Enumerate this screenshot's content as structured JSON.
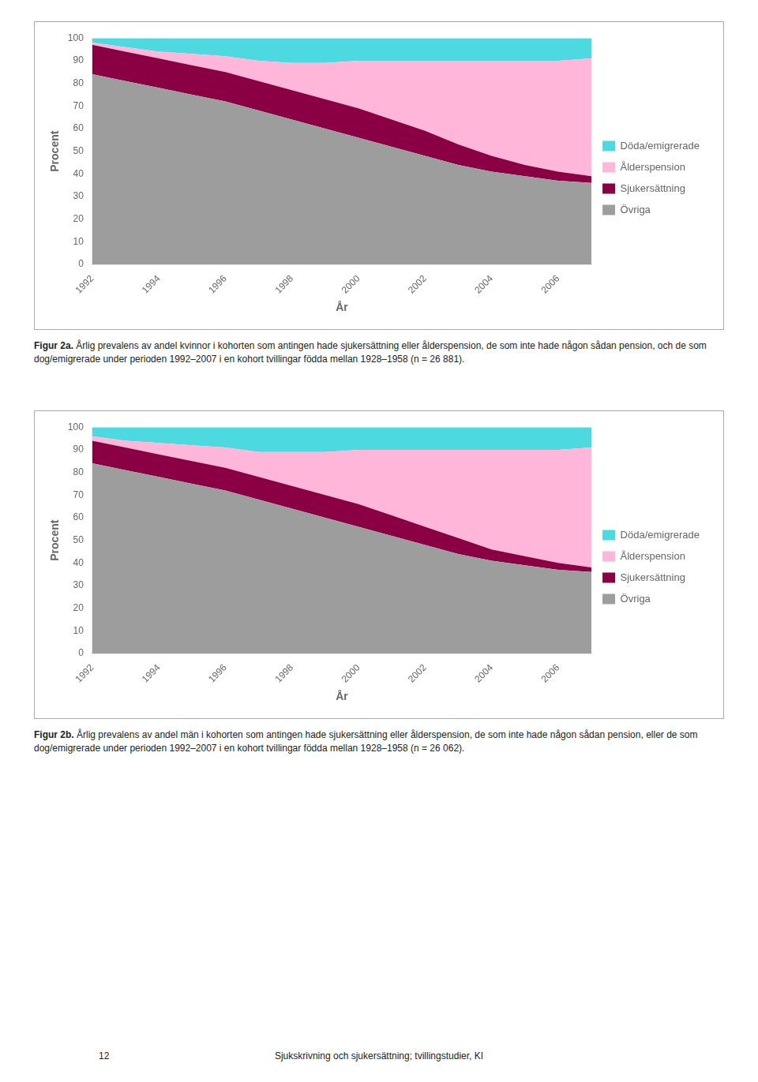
{
  "chart_data": [
    {
      "type": "area",
      "stacked": true,
      "grid": false,
      "legend": "right",
      "x_label": "År",
      "y_label": "Procent",
      "x": [
        1992,
        1993,
        1994,
        1995,
        1996,
        1997,
        1998,
        1999,
        2000,
        2001,
        2002,
        2003,
        2004,
        2005,
        2006,
        2007
      ],
      "xlim": [
        1992,
        2007
      ],
      "xticks": [
        1992,
        1994,
        1996,
        1998,
        2000,
        2002,
        2004,
        2006
      ],
      "ylim": [
        0,
        100
      ],
      "yticks": [
        0,
        10,
        20,
        30,
        40,
        50,
        60,
        70,
        80,
        90,
        100
      ],
      "series": [
        {
          "name": "Övriga",
          "color": "#9d9d9d",
          "values": [
            84,
            81,
            78,
            75,
            72,
            68,
            64,
            60,
            56,
            52,
            48,
            44,
            41,
            39,
            37,
            36
          ]
        },
        {
          "name": "Sjukersättning",
          "color": "#8b0045",
          "values": [
            13,
            13,
            13,
            13,
            13,
            13,
            13,
            13,
            13,
            12,
            11,
            9,
            7,
            5,
            4,
            3
          ]
        },
        {
          "name": "Ålderspension",
          "color": "#ffb6d9",
          "values": [
            1,
            2,
            3,
            5,
            7,
            9,
            12,
            16,
            21,
            26,
            31,
            37,
            42,
            46,
            49,
            52
          ]
        },
        {
          "name": "Döda/emigrerade",
          "color": "#4dd9e0",
          "values": [
            2,
            4,
            6,
            7,
            8,
            10,
            11,
            11,
            10,
            10,
            10,
            10,
            10,
            10,
            10,
            9
          ]
        }
      ],
      "caption": {
        "bold": "Figur 2a.",
        "text": " Årlig prevalens av andel kvinnor i kohorten som antingen hade sjukersättning eller ålderspension, de som inte hade någon sådan pension, och de som dog/emigrerade under perioden 1992–2007 i en kohort tvillingar födda mellan 1928–1958 (n = 26 881)."
      }
    },
    {
      "type": "area",
      "stacked": true,
      "grid": false,
      "legend": "right",
      "x_label": "År",
      "y_label": "Procent",
      "x": [
        1992,
        1993,
        1994,
        1995,
        1996,
        1997,
        1998,
        1999,
        2000,
        2001,
        2002,
        2003,
        2004,
        2005,
        2006,
        2007
      ],
      "xlim": [
        1992,
        2007
      ],
      "xticks": [
        1992,
        1994,
        1996,
        1998,
        2000,
        2002,
        2004,
        2006
      ],
      "ylim": [
        0,
        100
      ],
      "yticks": [
        0,
        10,
        20,
        30,
        40,
        50,
        60,
        70,
        80,
        90,
        100
      ],
      "series": [
        {
          "name": "Övriga",
          "color": "#9d9d9d",
          "values": [
            84,
            81,
            78,
            75,
            72,
            68,
            64,
            60,
            56,
            52,
            48,
            44,
            41,
            39,
            37,
            36
          ]
        },
        {
          "name": "Sjukersättning",
          "color": "#8b0045",
          "values": [
            10,
            10,
            10,
            10,
            10,
            10,
            10,
            10,
            10,
            9,
            8,
            7,
            5,
            4,
            3,
            2
          ]
        },
        {
          "name": "Ålderspension",
          "color": "#ffb6d9",
          "values": [
            2,
            3,
            5,
            7,
            9,
            11,
            15,
            19,
            24,
            29,
            34,
            39,
            44,
            47,
            50,
            53
          ]
        },
        {
          "name": "Döda/emigrerade",
          "color": "#4dd9e0",
          "values": [
            4,
            6,
            7,
            8,
            9,
            11,
            11,
            11,
            10,
            10,
            10,
            10,
            10,
            10,
            10,
            9
          ]
        }
      ],
      "caption": {
        "bold": "Figur 2b.",
        "text": " Årlig prevalens av andel män i kohorten som antingen hade sjukersättning eller ålderspension, de som inte hade någon sådan pension, eller de som dog/emigrerade under perioden 1992–2007 i en kohort tvillingar födda mellan 1928–1958 (n = 26 062)."
      }
    }
  ],
  "footer": {
    "left": "12",
    "right": "Sjukskrivning och sjukersättning; tvillingstudier, KI"
  }
}
